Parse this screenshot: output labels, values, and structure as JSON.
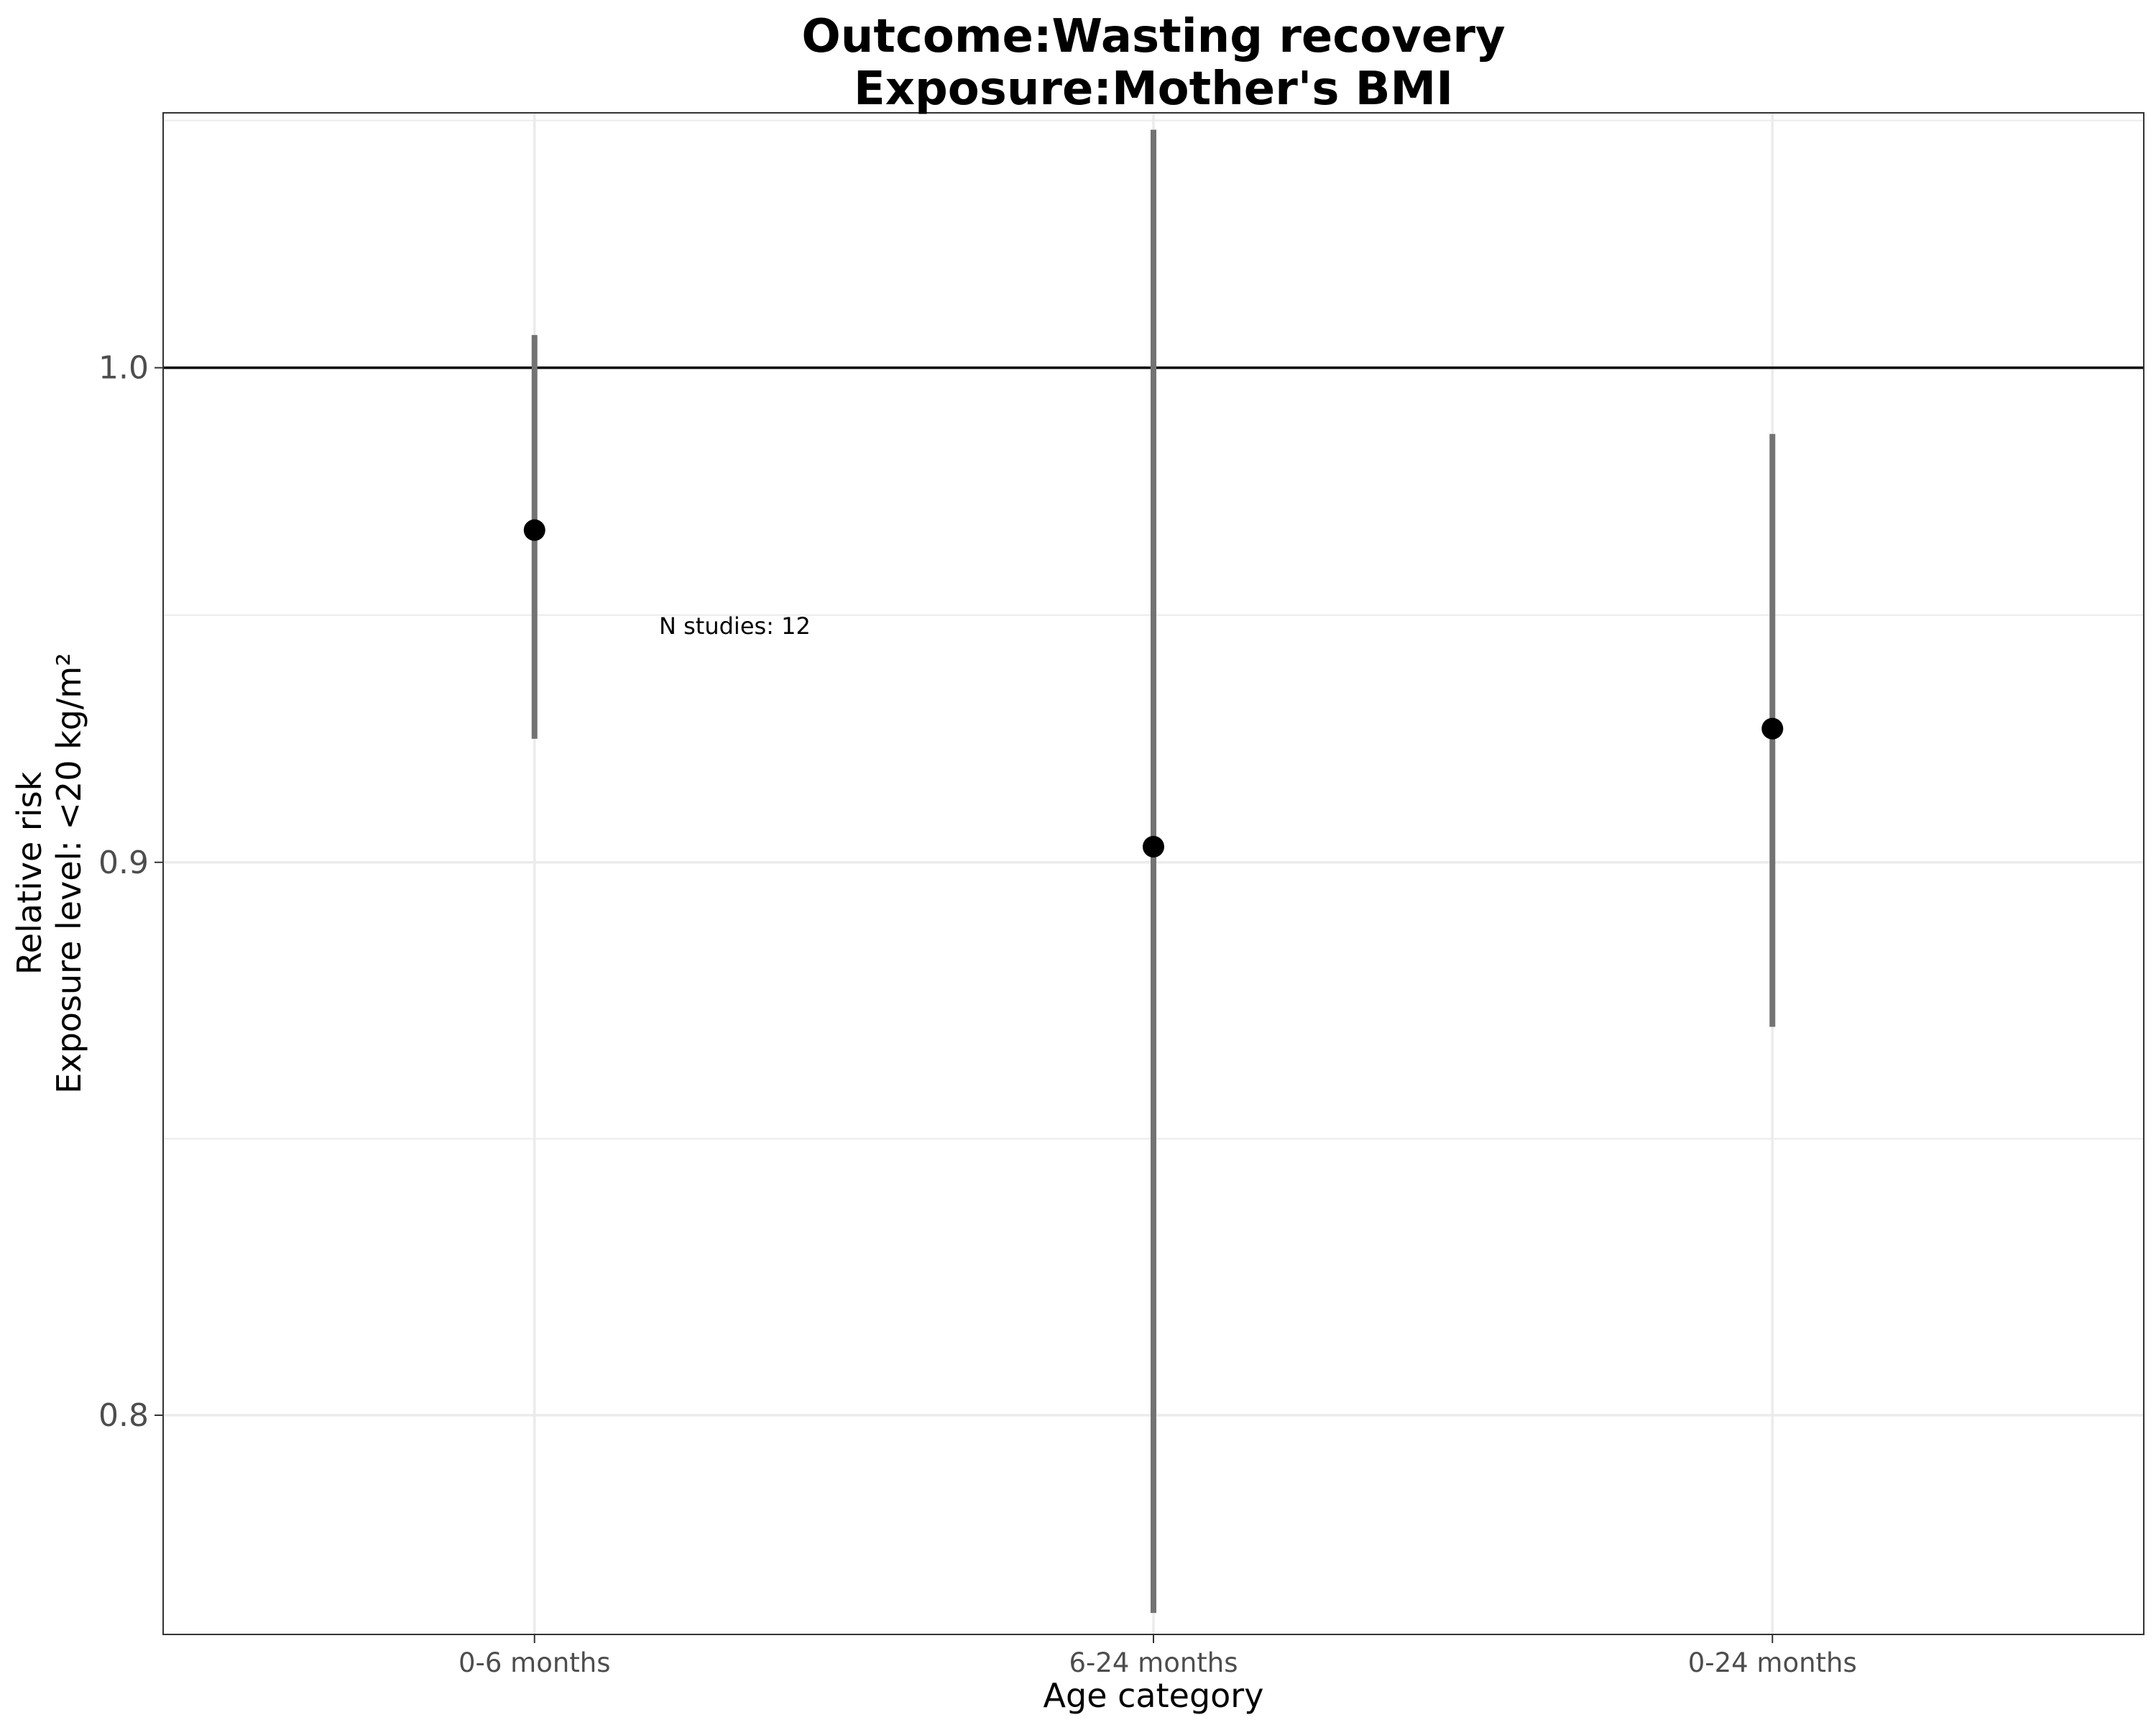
{
  "chart_data": {
    "type": "scatter",
    "title_line1": "Outcome:Wasting recovery",
    "title_line2": "Exposure:Mother's BMI",
    "xlabel": "Age category",
    "ylabel_line1": "Relative risk",
    "ylabel_line2": "Exposure level: <20 kg/m²",
    "y_scale": "log",
    "ylim": [
      0.7635,
      1.0558
    ],
    "yticks": [
      {
        "value": 0.8,
        "label": "0.8"
      },
      {
        "value": 0.9,
        "label": "0.9"
      },
      {
        "value": 1.0,
        "label": "1.0"
      }
    ],
    "reference_line": 1.0,
    "grid": true,
    "categories": [
      "0-6 months",
      "6-24 months",
      "0-24 months"
    ],
    "points": [
      {
        "category": "0-6 months",
        "estimate": 0.966,
        "ci_lower": 0.924,
        "ci_upper": 1.007
      },
      {
        "category": "6-24 months",
        "estimate": 0.903,
        "ci_lower": 0.767,
        "ci_upper": 1.052
      },
      {
        "category": "0-24 months",
        "estimate": 0.926,
        "ci_lower": 0.869,
        "ci_upper": 0.986
      }
    ],
    "annotation": "N studies: 12",
    "colors": {
      "point": "#000000",
      "errorbar": "#737373",
      "grid": "#ebebeb",
      "reference": "#000000"
    }
  }
}
